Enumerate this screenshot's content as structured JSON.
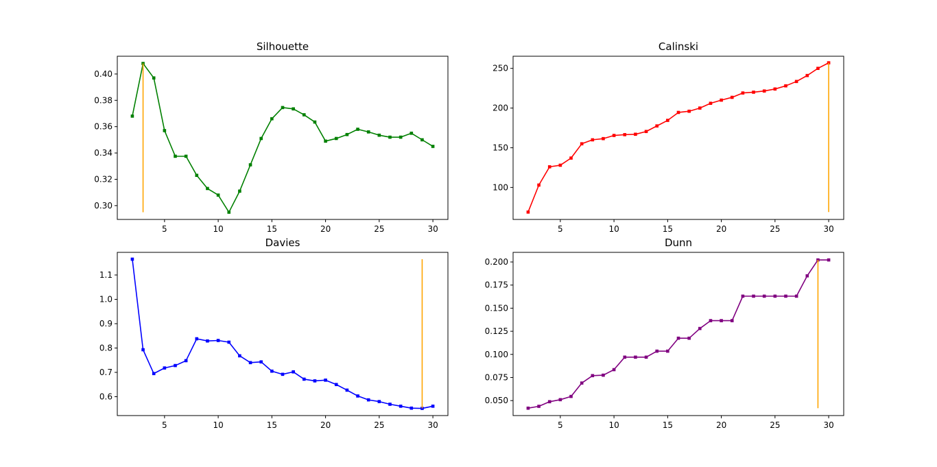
{
  "chart_data": [
    {
      "type": "line",
      "title": "Silhouette",
      "xlabel": "",
      "ylabel": "",
      "xlim": [
        0.6,
        31.4
      ],
      "ylim": [
        0.2895,
        0.4135
      ],
      "xticks": [
        5,
        10,
        15,
        20,
        25,
        30
      ],
      "yticks": [
        0.3,
        0.32,
        0.34,
        0.36,
        0.38,
        0.4
      ],
      "ytick_labels": [
        "0.30",
        "0.32",
        "0.34",
        "0.36",
        "0.38",
        "0.40"
      ],
      "grid": false,
      "line_color": "#008000",
      "marker": "square",
      "x": [
        2,
        3,
        4,
        5,
        6,
        7,
        8,
        9,
        10,
        11,
        12,
        13,
        14,
        15,
        16,
        17,
        18,
        19,
        20,
        21,
        22,
        23,
        24,
        25,
        26,
        27,
        28,
        29,
        30
      ],
      "values": [
        0.368,
        0.408,
        0.397,
        0.357,
        0.3375,
        0.3375,
        0.323,
        0.313,
        0.308,
        0.295,
        0.311,
        0.331,
        0.351,
        0.366,
        0.3745,
        0.3735,
        0.369,
        0.3635,
        0.349,
        0.351,
        0.354,
        0.358,
        0.356,
        0.3535,
        0.352,
        0.352,
        0.355,
        0.35,
        0.345
      ],
      "vline": {
        "x": 3,
        "ymin": 0.295,
        "ymax": 0.408,
        "color": "#FFA500"
      }
    },
    {
      "type": "line",
      "title": "Calinski",
      "xlabel": "",
      "ylabel": "",
      "xlim": [
        0.6,
        31.4
      ],
      "ylim": [
        59.7,
        265.3
      ],
      "xticks": [
        5,
        10,
        15,
        20,
        25,
        30
      ],
      "yticks": [
        100,
        150,
        200,
        250
      ],
      "ytick_labels": [
        "100",
        "150",
        "200",
        "250"
      ],
      "grid": false,
      "line_color": "#FF0000",
      "marker": "square",
      "x": [
        2,
        3,
        4,
        5,
        6,
        7,
        8,
        9,
        10,
        11,
        12,
        13,
        14,
        15,
        16,
        17,
        18,
        19,
        20,
        21,
        22,
        23,
        24,
        25,
        26,
        27,
        28,
        29,
        30
      ],
      "values": [
        69,
        103,
        126,
        128,
        137,
        155,
        160,
        161.5,
        165.5,
        166.5,
        167,
        170.5,
        177.5,
        184.5,
        194.5,
        196,
        200,
        206,
        210,
        213.5,
        219,
        220,
        221.5,
        224,
        228,
        233.5,
        241,
        250,
        257
      ],
      "vline": {
        "x": 30,
        "ymin": 69,
        "ymax": 257,
        "color": "#FFA500"
      }
    },
    {
      "type": "line",
      "title": "Davies",
      "xlabel": "",
      "ylabel": "",
      "xlim": [
        0.6,
        31.4
      ],
      "ylim": [
        0.5225,
        1.193
      ],
      "xticks": [
        5,
        10,
        15,
        20,
        25,
        30
      ],
      "yticks": [
        0.6,
        0.7,
        0.8,
        0.9,
        1.0,
        1.1
      ],
      "ytick_labels": [
        "0.6",
        "0.7",
        "0.8",
        "0.9",
        "1.0",
        "1.1"
      ],
      "grid": false,
      "line_color": "#0000FF",
      "marker": "square",
      "x": [
        2,
        3,
        4,
        5,
        6,
        7,
        8,
        9,
        10,
        11,
        12,
        13,
        14,
        15,
        16,
        17,
        18,
        19,
        20,
        21,
        22,
        23,
        24,
        25,
        26,
        27,
        28,
        29,
        30
      ],
      "values": [
        1.165,
        0.793,
        0.695,
        0.718,
        0.728,
        0.748,
        0.838,
        0.829,
        0.831,
        0.824,
        0.768,
        0.74,
        0.743,
        0.705,
        0.692,
        0.702,
        0.672,
        0.665,
        0.668,
        0.65,
        0.627,
        0.603,
        0.587,
        0.58,
        0.569,
        0.561,
        0.553,
        0.552,
        0.561
      ],
      "vline": {
        "x": 29,
        "ymin": 0.552,
        "ymax": 1.165,
        "color": "#FFA500"
      }
    },
    {
      "type": "line",
      "title": "Dunn",
      "xlabel": "",
      "ylabel": "",
      "xlim": [
        0.6,
        31.4
      ],
      "ylim": [
        0.0338,
        0.2104
      ],
      "xticks": [
        5,
        10,
        15,
        20,
        25,
        30
      ],
      "yticks": [
        0.05,
        0.075,
        0.1,
        0.125,
        0.15,
        0.175,
        0.2
      ],
      "ytick_labels": [
        "0.050",
        "0.075",
        "0.100",
        "0.125",
        "0.150",
        "0.175",
        "0.200"
      ],
      "grid": false,
      "line_color": "#800080",
      "marker": "square",
      "x": [
        2,
        3,
        4,
        5,
        6,
        7,
        8,
        9,
        10,
        11,
        12,
        13,
        14,
        15,
        16,
        17,
        18,
        19,
        20,
        21,
        22,
        23,
        24,
        25,
        26,
        27,
        28,
        29,
        30
      ],
      "values": [
        0.0418,
        0.0438,
        0.0488,
        0.051,
        0.0545,
        0.069,
        0.077,
        0.0775,
        0.0835,
        0.097,
        0.097,
        0.097,
        0.1035,
        0.1035,
        0.1175,
        0.1175,
        0.128,
        0.1365,
        0.1365,
        0.1365,
        0.163,
        0.163,
        0.163,
        0.163,
        0.163,
        0.163,
        0.185,
        0.2022,
        0.2022
      ],
      "vline": {
        "x": 29,
        "ymin": 0.0418,
        "ymax": 0.2022,
        "color": "#FFA500"
      }
    }
  ]
}
